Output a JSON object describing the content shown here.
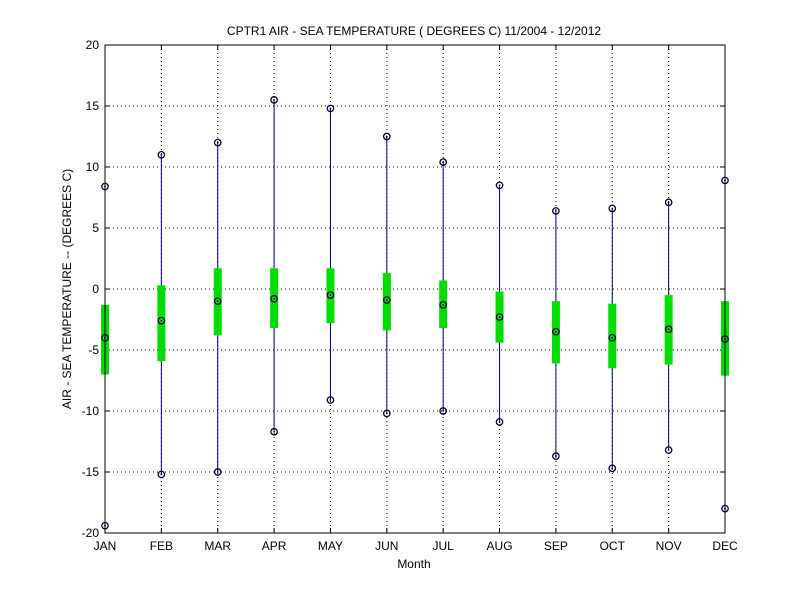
{
  "chart_data": {
    "type": "box",
    "title": "CPTR1  AIR - SEA TEMPERATURE ( DEGREES C) 11/2004 - 12/2012",
    "xlabel": "Month",
    "ylabel": "AIR - SEA TEMPERATURE -- (DEGREES C)",
    "ylim": [
      -20,
      20
    ],
    "yticks": [
      -20,
      -15,
      -10,
      -5,
      0,
      5,
      10,
      15,
      20
    ],
    "grid": true,
    "grid_style": "dotted",
    "categories": [
      "JAN",
      "FEB",
      "MAR",
      "APR",
      "MAY",
      "JUN",
      "JUL",
      "AUG",
      "SEP",
      "OCT",
      "NOV",
      "DEC"
    ],
    "series": [
      {
        "whisker_color": "#00008b",
        "box_color": "#00dd00",
        "marker_color": "#000033",
        "min": [
          -19.4,
          -15.2,
          -15.0,
          -11.7,
          -9.1,
          -10.2,
          -10.0,
          -10.9,
          -13.7,
          -14.7,
          -13.2,
          -18.0
        ],
        "q1": [
          -7.0,
          -5.9,
          -3.8,
          -3.2,
          -2.8,
          -3.4,
          -3.2,
          -4.4,
          -6.1,
          -6.5,
          -6.2,
          -7.1
        ],
        "median": [
          -4.0,
          -2.6,
          -1.0,
          -0.8,
          -0.5,
          -0.9,
          -1.3,
          -2.3,
          -3.5,
          -4.0,
          -3.3,
          -4.1
        ],
        "q3": [
          -1.3,
          0.3,
          1.7,
          1.7,
          1.7,
          1.3,
          0.7,
          -0.2,
          -1.0,
          -1.2,
          -0.5,
          -1.0
        ],
        "max": [
          8.4,
          11.0,
          12.0,
          15.5,
          14.8,
          12.5,
          10.4,
          8.5,
          6.4,
          6.6,
          7.1,
          8.9
        ]
      }
    ]
  }
}
